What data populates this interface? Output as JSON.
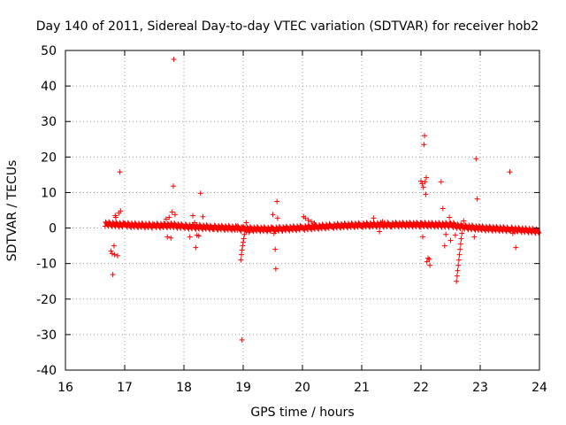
{
  "chart_data": {
    "type": "scatter",
    "title": "Day 140 of 2011, Sidereal Day-to-day VTEC variation (SDTVAR) for receiver hob2",
    "xlabel": "GPS time / hours",
    "ylabel": "SDTVAR / TECUs",
    "xlim": [
      16,
      24
    ],
    "ylim": [
      -40,
      50
    ],
    "xticks": [
      16,
      17,
      18,
      19,
      20,
      21,
      22,
      23,
      24
    ],
    "yticks": [
      -40,
      -30,
      -20,
      -10,
      0,
      10,
      20,
      30,
      40,
      50
    ],
    "grid": true,
    "marker": "+",
    "color": "#ff0000",
    "series": [
      {
        "name": "SDTVAR",
        "baseline": [
          [
            16.67,
            1.2
          ],
          [
            17.0,
            0.9
          ],
          [
            17.5,
            0.7
          ],
          [
            17.8,
            0.8
          ],
          [
            18.0,
            0.5
          ],
          [
            18.5,
            0.2
          ],
          [
            18.9,
            0.0
          ],
          [
            19.0,
            -0.2
          ],
          [
            19.5,
            -0.3
          ],
          [
            20.0,
            0.1
          ],
          [
            20.5,
            0.6
          ],
          [
            21.0,
            0.9
          ],
          [
            21.5,
            1.0
          ],
          [
            22.0,
            1.0
          ],
          [
            22.5,
            0.9
          ],
          [
            22.7,
            0.4
          ],
          [
            23.0,
            0.0
          ],
          [
            23.5,
            -0.3
          ],
          [
            24.0,
            -0.8
          ]
        ],
        "points": [
          [
            16.77,
            -6.5
          ],
          [
            16.79,
            -7.2
          ],
          [
            16.8,
            -13.1
          ],
          [
            16.82,
            -5.0
          ],
          [
            16.83,
            -7.5
          ],
          [
            16.84,
            3.5
          ],
          [
            16.85,
            3.0
          ],
          [
            16.88,
            -7.8
          ],
          [
            16.9,
            4.2
          ],
          [
            16.92,
            15.8
          ],
          [
            16.93,
            4.8
          ],
          [
            17.7,
            2.5
          ],
          [
            17.72,
            -2.5
          ],
          [
            17.75,
            3.0
          ],
          [
            17.78,
            -2.8
          ],
          [
            17.8,
            4.5
          ],
          [
            17.83,
            47.5
          ],
          [
            17.82,
            11.8
          ],
          [
            17.85,
            3.8
          ],
          [
            18.1,
            -2.5
          ],
          [
            18.15,
            3.5
          ],
          [
            18.18,
            1.5
          ],
          [
            18.2,
            -5.5
          ],
          [
            18.22,
            -2.0
          ],
          [
            18.25,
            -2.2
          ],
          [
            18.28,
            9.8
          ],
          [
            18.32,
            3.2
          ],
          [
            18.98,
            -31.5
          ],
          [
            18.96,
            -9.0
          ],
          [
            18.97,
            -7.5
          ],
          [
            18.98,
            -6.2
          ],
          [
            18.99,
            -5.0
          ],
          [
            19.0,
            -4.0
          ],
          [
            19.01,
            -3.0
          ],
          [
            19.02,
            -1.8
          ],
          [
            19.03,
            0.0
          ],
          [
            19.05,
            1.5
          ],
          [
            19.1,
            -1.2
          ],
          [
            19.5,
            3.8
          ],
          [
            19.52,
            -1.5
          ],
          [
            19.54,
            -6.0
          ],
          [
            19.55,
            -11.5
          ],
          [
            19.57,
            7.5
          ],
          [
            19.58,
            2.8
          ],
          [
            20.02,
            3.2
          ],
          [
            20.05,
            2.8
          ],
          [
            20.1,
            2.2
          ],
          [
            20.15,
            1.8
          ],
          [
            20.2,
            1.4
          ],
          [
            21.2,
            2.8
          ],
          [
            21.3,
            -1.0
          ],
          [
            21.35,
            1.8
          ],
          [
            22.0,
            13.2
          ],
          [
            22.02,
            12.5
          ],
          [
            22.04,
            11.5
          ],
          [
            22.05,
            23.5
          ],
          [
            22.06,
            26.0
          ],
          [
            22.07,
            13.0
          ],
          [
            22.08,
            9.5
          ],
          [
            22.09,
            14.2
          ],
          [
            22.1,
            -9.5
          ],
          [
            22.12,
            -8.5
          ],
          [
            22.14,
            -8.8
          ],
          [
            22.15,
            -10.5
          ],
          [
            22.03,
            -2.5
          ],
          [
            22.34,
            13.0
          ],
          [
            22.37,
            5.5
          ],
          [
            22.4,
            -5.0
          ],
          [
            22.42,
            -1.8
          ],
          [
            22.45,
            1.0
          ],
          [
            22.48,
            3.0
          ],
          [
            22.5,
            -3.5
          ],
          [
            22.55,
            1.5
          ],
          [
            22.58,
            -2.0
          ],
          [
            22.6,
            -15.0
          ],
          [
            22.61,
            -13.5
          ],
          [
            22.62,
            -12.0
          ],
          [
            22.63,
            -10.5
          ],
          [
            22.64,
            -9.0
          ],
          [
            22.65,
            -7.5
          ],
          [
            22.66,
            -6.0
          ],
          [
            22.67,
            -4.5
          ],
          [
            22.68,
            -3.0
          ],
          [
            22.69,
            -1.5
          ],
          [
            22.7,
            0.0
          ],
          [
            22.72,
            2.0
          ],
          [
            22.9,
            -2.5
          ],
          [
            22.93,
            19.5
          ],
          [
            22.95,
            8.2
          ],
          [
            23.5,
            15.8
          ],
          [
            23.55,
            -1.5
          ],
          [
            23.6,
            -5.5
          ],
          [
            23.62,
            -0.8
          ],
          [
            23.7,
            -0.5
          ]
        ]
      }
    ]
  }
}
